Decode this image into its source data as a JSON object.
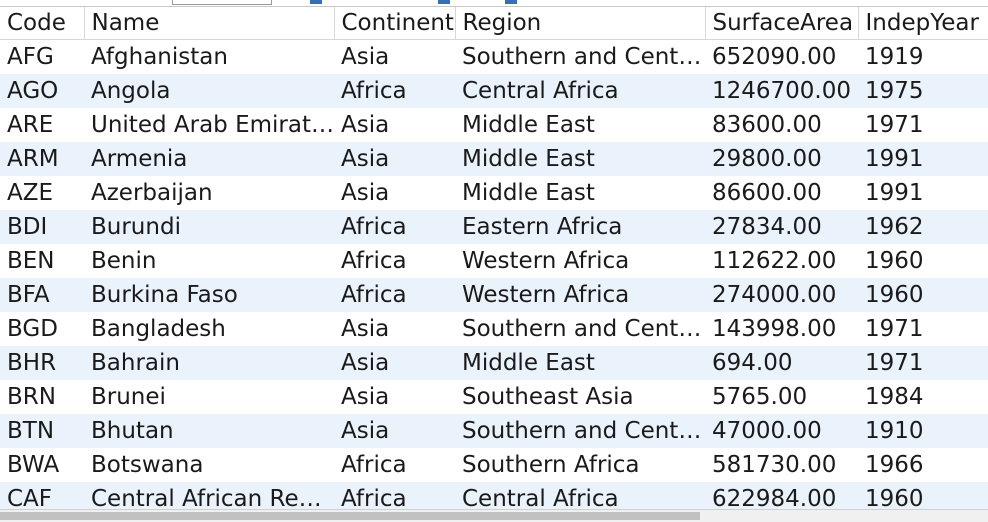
{
  "columns": [
    "Code",
    "Name",
    "Continent",
    "Region",
    "SurfaceArea",
    "IndepYear"
  ],
  "rows": [
    [
      "AFG",
      "Afghanistan",
      "Asia",
      "Southern and Centr...",
      "652090.00",
      "1919"
    ],
    [
      "AGO",
      "Angola",
      "Africa",
      "Central Africa",
      "1246700.00",
      "1975"
    ],
    [
      "ARE",
      "United Arab Emirates",
      "Asia",
      "Middle East",
      "83600.00",
      "1971"
    ],
    [
      "ARM",
      "Armenia",
      "Asia",
      "Middle East",
      "29800.00",
      "1991"
    ],
    [
      "AZE",
      "Azerbaijan",
      "Asia",
      "Middle East",
      "86600.00",
      "1991"
    ],
    [
      "BDI",
      "Burundi",
      "Africa",
      "Eastern Africa",
      "27834.00",
      "1962"
    ],
    [
      "BEN",
      "Benin",
      "Africa",
      "Western Africa",
      "112622.00",
      "1960"
    ],
    [
      "BFA",
      "Burkina Faso",
      "Africa",
      "Western Africa",
      "274000.00",
      "1960"
    ],
    [
      "BGD",
      "Bangladesh",
      "Asia",
      "Southern and Centr...",
      "143998.00",
      "1971"
    ],
    [
      "BHR",
      "Bahrain",
      "Asia",
      "Middle East",
      "694.00",
      "1971"
    ],
    [
      "BRN",
      "Brunei",
      "Asia",
      "Southeast Asia",
      "5765.00",
      "1984"
    ],
    [
      "BTN",
      "Bhutan",
      "Asia",
      "Southern and Centr...",
      "47000.00",
      "1910"
    ],
    [
      "BWA",
      "Botswana",
      "Africa",
      "Southern Africa",
      "581730.00",
      "1966"
    ],
    [
      "CAF",
      "Central African Rep...",
      "Africa",
      "Central Africa",
      "622984.00",
      "1960"
    ]
  ],
  "colors": {
    "header_bg": "#ffffff",
    "row_alt_bg": "#eaf2fb",
    "grid_line": "#d7d7d7",
    "toolbar_accent": "#3b6db5"
  }
}
